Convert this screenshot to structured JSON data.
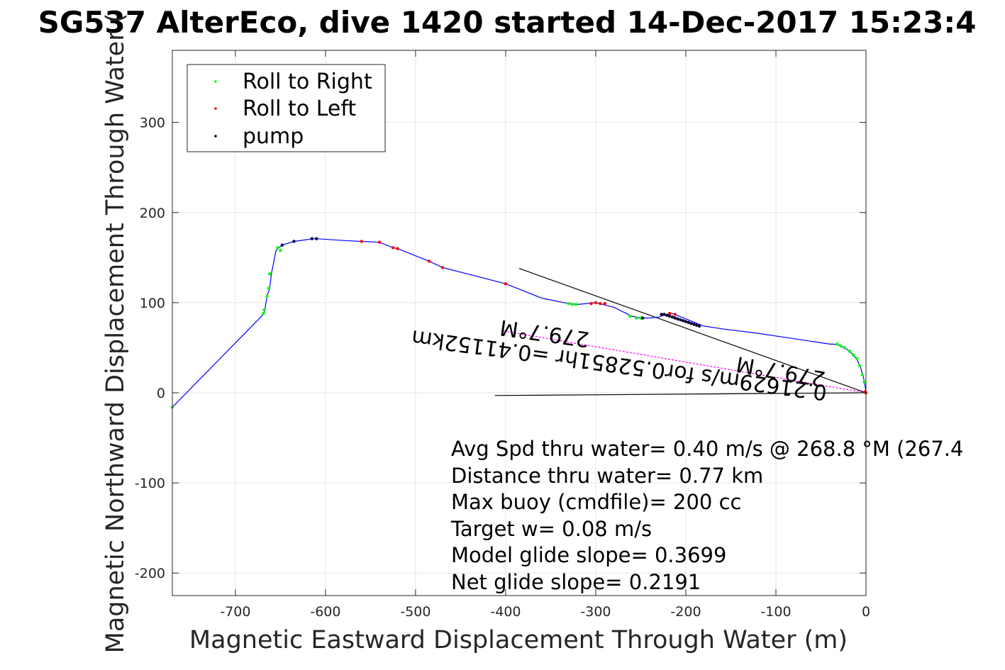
{
  "chart_data": {
    "type": "line",
    "title": "SG537 AlterEco, dive 1420 started 14-Dec-2017 15:23:4",
    "xlabel": "Magnetic Eastward Displacement Through Water (m)",
    "ylabel": "Magnetic Northward Displacement Through Water (",
    "xlim": [
      -770,
      0
    ],
    "ylim": [
      -225,
      380
    ],
    "xticks": [
      -700,
      -600,
      -500,
      -400,
      -300,
      -200,
      -100,
      0
    ],
    "xtick_labels": [
      "-700",
      "-600",
      "-500",
      "-400",
      "-300",
      "-200",
      "-100",
      "0"
    ],
    "yticks": [
      -200,
      -100,
      0,
      100,
      200,
      300
    ],
    "ytick_labels": [
      "-200",
      "-100",
      "0",
      "100",
      "200",
      "300"
    ],
    "grid": true,
    "legend_position": "top-left",
    "track": {
      "color": "#0000ff",
      "x": [
        0,
        -1,
        -3,
        -6,
        -10,
        -16,
        -22,
        -30,
        -36,
        -40,
        -80,
        -120,
        -160,
        -180,
        -185,
        -190,
        -195,
        -200,
        -205,
        -210,
        -215,
        -220,
        -225,
        -230,
        -240,
        -250,
        -260,
        -280,
        -300,
        -310,
        -320,
        -330,
        -360,
        -400,
        -470,
        -485,
        -520,
        -525,
        -540,
        -560,
        -580,
        -610,
        -615,
        -620,
        -635,
        -648,
        -652,
        -655,
        -660,
        -662,
        -665,
        -668,
        -770
      ],
      "y": [
        0,
        8,
        18,
        28,
        37,
        44,
        49,
        53,
        54,
        54,
        60,
        66,
        71,
        74,
        76,
        78,
        80,
        82,
        84,
        86,
        88,
        87,
        86,
        84,
        83,
        83,
        85,
        95,
        100,
        99,
        98,
        99,
        105,
        121,
        139,
        146,
        160,
        161,
        167,
        168,
        169,
        171,
        171,
        170,
        168,
        164,
        161,
        158,
        132,
        116,
        107,
        88,
        -16
      ]
    },
    "series": [
      {
        "name": "Roll to Right",
        "color": "#00ff00",
        "x": [
          -2,
          -4,
          -7,
          -10,
          -14,
          -18,
          -24,
          -28,
          -32,
          -250,
          -255,
          -262,
          -322,
          -326,
          -330,
          -650,
          -653,
          -662,
          -663,
          -665,
          -668,
          -669,
          -770
        ],
        "y": [
          12,
          20,
          30,
          38,
          42,
          46,
          50,
          52,
          54,
          83,
          83,
          85,
          98,
          98,
          99,
          158,
          161,
          132,
          116,
          107,
          92,
          88,
          -16
        ]
      },
      {
        "name": "Roll to Left",
        "color": "#ff0000",
        "x": [
          0,
          -1,
          -212,
          -218,
          -290,
          -295,
          -300,
          -305,
          -400,
          -470,
          -485,
          -520,
          -525,
          -540,
          -560
        ],
        "y": [
          0,
          1,
          87,
          88,
          99,
          99,
          100,
          99,
          121,
          139,
          146,
          160,
          161,
          167,
          168
        ]
      },
      {
        "name": "pump",
        "color": "#000033",
        "x": [
          -185,
          -188,
          -191,
          -194,
          -197,
          -200,
          -203,
          -206,
          -209,
          -212,
          -215,
          -218,
          -221,
          -224,
          -227,
          -248,
          -610,
          -615,
          -635,
          -648
        ],
        "y": [
          74,
          75,
          76,
          77,
          78,
          79,
          80,
          81,
          82,
          83,
          84,
          85,
          86,
          87,
          87,
          83,
          171,
          171,
          168,
          164
        ]
      }
    ],
    "current_line": {
      "color": "#ff00ff",
      "x": [
        0,
        -405
      ],
      "y": [
        0,
        69
      ]
    },
    "reference_lines": [
      {
        "color": "#000000",
        "x": [
          0,
          -385
        ],
        "y": [
          0,
          138
        ]
      },
      {
        "color": "#000000",
        "x": [
          0,
          -412
        ],
        "y": [
          0,
          -3
        ]
      }
    ],
    "rotated_labels": {
      "current_speed": "0.21629m/s for0.52851hr =0.41152km",
      "current_heading": "279.7°M",
      "heading_near_origin": "279.7°M"
    },
    "annotations": [
      "Avg Spd thru water=  0.40 m/s @ 268.8 °M (267.4",
      "Distance thru water=  0.77 km",
      "Max buoy (cmdfile)= 200 cc",
      "Target w= 0.08 m/s",
      "Model glide slope= 0.3699",
      "Net glide slope= 0.2191"
    ]
  }
}
